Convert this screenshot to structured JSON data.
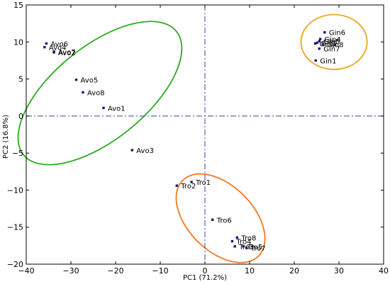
{
  "chart_data": {
    "type": "scatter",
    "title": "",
    "xlabel": "PC1 (71.2%)",
    "ylabel": "PC2 (16.8%)",
    "xlim": [
      -40,
      40
    ],
    "ylim": [
      -20,
      15
    ],
    "xticks": [
      -40,
      -30,
      -20,
      -10,
      0,
      10,
      20,
      30,
      40
    ],
    "yticks": [
      -20,
      -15,
      -10,
      -5,
      0,
      5,
      10,
      15
    ],
    "grid": false,
    "reference_lines": {
      "x": 0,
      "y": 0,
      "style": "dash-dot",
      "color": "#3f3fa8"
    },
    "marker_color": "#1a1a6e",
    "points": [
      {
        "label": "Avo6",
        "x": -35.5,
        "y": 9.8
      },
      {
        "label": "Avo4",
        "x": -35.9,
        "y": 9.3
      },
      {
        "label": "Avo7",
        "x": -33.8,
        "y": 8.7
      },
      {
        "label": "Avo2",
        "x": -33.8,
        "y": 8.6
      },
      {
        "label": "Avo5",
        "x": -28.8,
        "y": 4.9
      },
      {
        "label": "Avo8",
        "x": -27.3,
        "y": 3.2
      },
      {
        "label": "Avo1",
        "x": -22.7,
        "y": 1.1
      },
      {
        "label": "Avo3",
        "x": -16.3,
        "y": -4.6
      },
      {
        "label": "Gin6",
        "x": 26.8,
        "y": 11.3
      },
      {
        "label": "Gin4",
        "x": 25.8,
        "y": 10.4
      },
      {
        "label": "Gin5",
        "x": 25.6,
        "y": 10.1
      },
      {
        "label": "Gin2",
        "x": 25.1,
        "y": 9.9
      },
      {
        "label": "Gin3",
        "x": 24.7,
        "y": 9.8
      },
      {
        "label": "Gin8",
        "x": 26.4,
        "y": 9.7
      },
      {
        "label": "Gin7",
        "x": 25.6,
        "y": 9.1
      },
      {
        "label": "Gin1",
        "x": 24.8,
        "y": 7.5
      },
      {
        "label": "Tro1",
        "x": -3.0,
        "y": -8.9
      },
      {
        "label": "Tro2",
        "x": -6.3,
        "y": -9.4
      },
      {
        "label": "Tro6",
        "x": 1.7,
        "y": -14.0
      },
      {
        "label": "Tro8",
        "x": 7.2,
        "y": -16.4
      },
      {
        "label": "Tro4",
        "x": 6.1,
        "y": -16.9
      },
      {
        "label": "Tro3",
        "x": 6.7,
        "y": -17.6
      },
      {
        "label": "Tro5",
        "x": 8.6,
        "y": -17.6
      },
      {
        "label": "Tro7",
        "x": 9.3,
        "y": -17.8
      }
    ],
    "ellipses": [
      {
        "group": "Avo",
        "color": "#2eaa22",
        "cx": -23.5,
        "cy": 3.1,
        "rx": 22.0,
        "ry": 6.3,
        "angle_deg": 39
      },
      {
        "group": "Gin",
        "color": "#e8a818",
        "cx": 28.9,
        "cy": 10.0,
        "rx": 7.4,
        "ry": 3.7,
        "angle_deg": 0
      },
      {
        "group": "Tro",
        "color": "#f07820",
        "cx": 3.5,
        "cy": -13.8,
        "rx": 12.0,
        "ry": 4.4,
        "angle_deg": -45
      }
    ]
  }
}
